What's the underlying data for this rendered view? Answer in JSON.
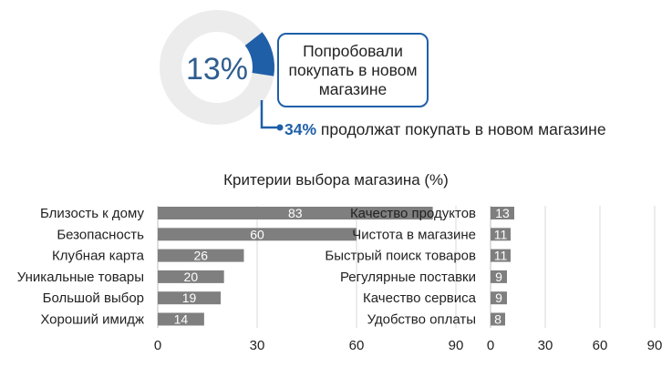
{
  "donut": {
    "value": 13,
    "label": "13%",
    "colors": {
      "fill": "#1f5fa8",
      "track": "#ececec",
      "label": "#2f5d8f"
    }
  },
  "callout": {
    "text": "Попробовали покупать в новом магазине"
  },
  "continuation": {
    "percent": "34%",
    "text": "продолжат покупать в новом магазине"
  },
  "section_title": "Критерии выбора магазина (%)",
  "colors": {
    "bar": "#7f7f7f",
    "grid": "#d9d9d9",
    "accent": "#1f5fa8"
  },
  "chart_data": [
    {
      "type": "bar",
      "orientation": "horizontal",
      "categories": [
        "Близость к дому",
        "Безопасность",
        "Клубная карта",
        "Уникальные товары",
        "Большой выбор",
        "Хороший имидж"
      ],
      "values": [
        83,
        60,
        26,
        20,
        19,
        14
      ],
      "xlim": [
        0,
        90
      ],
      "xticks": [
        0,
        30,
        60,
        90
      ],
      "grid": true
    },
    {
      "type": "bar",
      "orientation": "horizontal",
      "categories": [
        "Качество продуктов",
        "Чистота в магазине",
        "Быстрый поиск товаров",
        "Регулярные поставки",
        "Качество сервиса",
        "Удобство оплаты"
      ],
      "values": [
        13,
        11,
        11,
        9,
        9,
        8
      ],
      "xlim": [
        0,
        90
      ],
      "xticks": [
        0,
        30,
        60,
        90
      ],
      "grid": true
    }
  ]
}
